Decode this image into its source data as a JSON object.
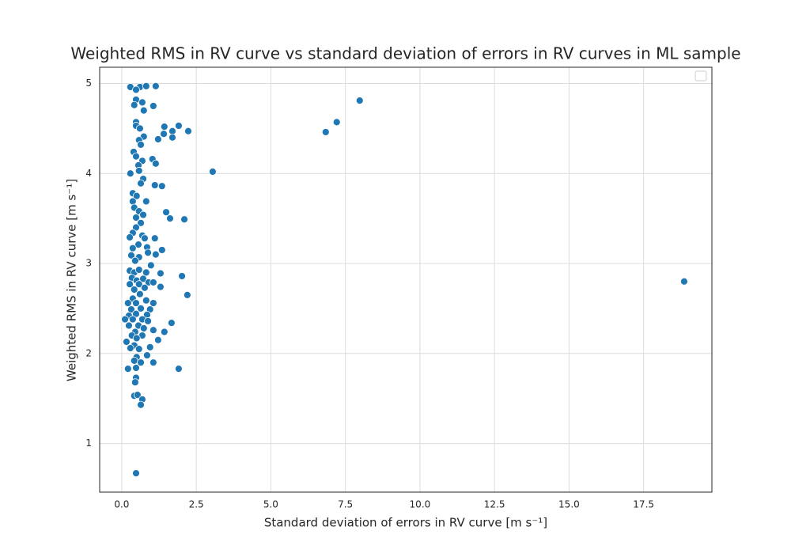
{
  "chart_data": {
    "type": "scatter",
    "title": "Weighted RMS in RV curve vs standard deviation of errors in RV curves in ML sample",
    "x_label": "Standard deviation of errors in RV curve [m s⁻¹]",
    "y_label": "Weighted RMS in RV curve [m s⁻¹]",
    "color": "#1f77b4",
    "grid": true,
    "xlim": [
      -0.74,
      19.79
    ],
    "ylim": [
      0.46,
      5.18
    ],
    "xticks": [
      {
        "value": 0,
        "label": "0.0"
      },
      2.5,
      {
        "value": 5,
        "label": "5.0"
      },
      7.5,
      {
        "value": 10,
        "label": "10.0"
      },
      12.5,
      {
        "value": 15,
        "label": "15.0"
      },
      17.5
    ],
    "yticks": [
      1,
      2,
      3,
      4,
      5
    ],
    "x": [
      0.29,
      0.61,
      0.82,
      1.14,
      0.48,
      0.48,
      0.42,
      0.69,
      1.06,
      0.74,
      0.48,
      0.48,
      0.61,
      1.43,
      1.91,
      2.23,
      1.7,
      1.7,
      1.41,
      1.22,
      0.74,
      0.58,
      0.64,
      7.21,
      7.98,
      6.84,
      3.05,
      0.4,
      0.48,
      0.69,
      0.56,
      1.03,
      1.14,
      0.29,
      0.58,
      0.72,
      0.64,
      1.11,
      1.35,
      0.37,
      0.5,
      0.82,
      0.37,
      0.42,
      0.58,
      0.72,
      1.49,
      1.62,
      2.1,
      0.48,
      0.64,
      0.48,
      0.37,
      0.69,
      0.77,
      1.11,
      0.27,
      0.56,
      0.85,
      0.37,
      1.35,
      1.14,
      0.88,
      0.32,
      0.58,
      0.98,
      0.45,
      0.27,
      0.42,
      0.58,
      0.82,
      1.3,
      2.02,
      0.34,
      0.5,
      0.72,
      0.9,
      1.06,
      18.86,
      0.27,
      0.58,
      0.77,
      1.3,
      0.42,
      2.2,
      0.61,
      0.37,
      0.82,
      0.21,
      0.48,
      1.06,
      0.64,
      0.95,
      0.32,
      0.48,
      0.85,
      0.24,
      0.69,
      0.37,
      0.11,
      0.88,
      1.67,
      0.56,
      0.24,
      0.74,
      0.45,
      1.43,
      1.06,
      0.34,
      0.69,
      0.5,
      1.22,
      0.16,
      0.42,
      0.95,
      0.58,
      0.29,
      0.85,
      0.5,
      0.42,
      0.64,
      1.06,
      0.21,
      0.48,
      1.91,
      0.48,
      0.45,
      0.42,
      0.53,
      0.69,
      0.64,
      0.48
    ],
    "values": [
      4.96,
      4.96,
      4.97,
      4.97,
      4.93,
      4.82,
      4.76,
      4.79,
      4.75,
      4.7,
      4.57,
      4.53,
      4.5,
      4.52,
      4.53,
      4.47,
      4.47,
      4.4,
      4.44,
      4.38,
      4.41,
      4.37,
      4.32,
      4.57,
      4.81,
      4.46,
      4.02,
      4.24,
      4.19,
      4.14,
      4.09,
      4.16,
      4.11,
      4.0,
      4.03,
      3.94,
      3.89,
      3.87,
      3.86,
      3.78,
      3.75,
      3.69,
      3.69,
      3.62,
      3.58,
      3.54,
      3.57,
      3.5,
      3.49,
      3.51,
      3.45,
      3.4,
      3.34,
      3.31,
      3.28,
      3.28,
      3.29,
      3.21,
      3.18,
      3.17,
      3.15,
      3.1,
      3.12,
      3.09,
      3.07,
      2.98,
      3.03,
      2.92,
      2.9,
      2.93,
      2.9,
      2.89,
      2.86,
      2.84,
      2.81,
      2.83,
      2.79,
      2.79,
      2.8,
      2.77,
      2.77,
      2.73,
      2.74,
      2.71,
      2.65,
      2.66,
      2.61,
      2.59,
      2.56,
      2.56,
      2.56,
      2.5,
      2.49,
      2.49,
      2.44,
      2.43,
      2.42,
      2.38,
      2.38,
      2.38,
      2.36,
      2.34,
      2.31,
      2.31,
      2.28,
      2.24,
      2.24,
      2.26,
      2.2,
      2.2,
      2.17,
      2.15,
      2.13,
      2.09,
      2.07,
      2.05,
      2.06,
      1.98,
      1.96,
      1.92,
      1.9,
      1.9,
      1.83,
      1.84,
      1.83,
      1.73,
      1.68,
      1.53,
      1.54,
      1.49,
      1.43,
      0.67
    ]
  }
}
